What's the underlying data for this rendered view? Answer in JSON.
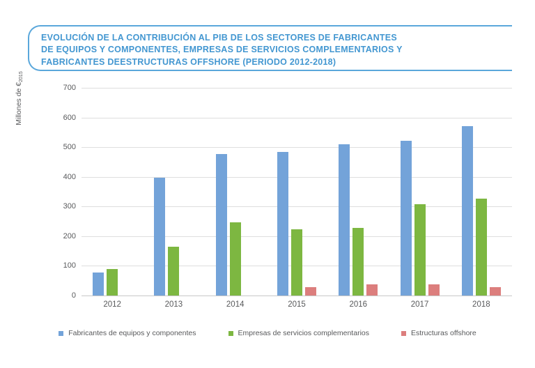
{
  "title": {
    "lines": [
      "EVOLUCIÓN DE LA CONTRIBUCIÓN AL PIB DE LOS SECTORES DE FABRICANTES",
      "DE EQUIPOS Y COMPONENTES, EMPRESAS DE SERVICIOS COMPLEMENTARIOS Y",
      "FABRICANTES DEESTRUCTURAS OFFSHORE (PERIODO 2012-2018)"
    ],
    "accent_color": "#4397d1",
    "border_color": "#5aa7db"
  },
  "chart_data": {
    "type": "bar",
    "title": "Evolución de la contribución al PIB (Periodo 2012-2018)",
    "categories": [
      "2012",
      "2013",
      "2014",
      "2015",
      "2016",
      "2017",
      "2018"
    ],
    "series": [
      {
        "name": "Fabricantes de equipos y componentes",
        "color": "#73a3d9",
        "values": [
          78,
          397,
          476,
          485,
          510,
          521,
          570
        ]
      },
      {
        "name": "Empresas de servicios complementarios",
        "color": "#7db741",
        "values": [
          90,
          165,
          246,
          222,
          228,
          308,
          327
        ]
      },
      {
        "name": "Estructuras offshore",
        "color": "#dc7e7d",
        "values": [
          0,
          0,
          0,
          28,
          37,
          37,
          28
        ]
      }
    ],
    "xlabel": "",
    "ylabel": "Millones de €",
    "ylabel_subscript": "2015",
    "yticks": [
      0,
      100,
      200,
      300,
      400,
      500,
      600,
      700
    ],
    "ylim": [
      0,
      700
    ],
    "grid": true,
    "legend_position": "bottom",
    "gridline_color": "#dedede",
    "tick_color": "#58595b"
  }
}
